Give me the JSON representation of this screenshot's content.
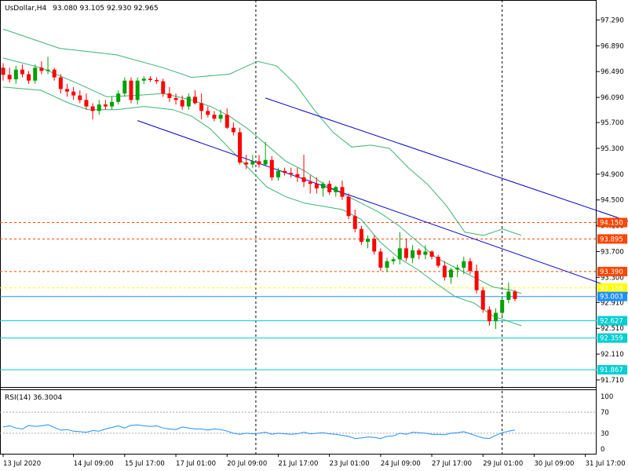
{
  "chart_data": {
    "type": "candlestick",
    "symbol_label": "UsDollar,H4",
    "ohlc_header": "93.080 93.105 92.930 92.965",
    "price_axis": {
      "ylim": [
        91.6,
        97.6
      ],
      "ticks": [
        "97.290",
        "96.890",
        "96.490",
        "96.090",
        "95.700",
        "95.300",
        "94.900",
        "94.500",
        "94.100",
        "93.700",
        "93.300",
        "92.910",
        "92.510",
        "92.110",
        "91.710"
      ]
    },
    "level_tags": [
      {
        "label": "94.150",
        "value": 94.15,
        "color": "#ff4500",
        "line": "dashed"
      },
      {
        "label": "93.895",
        "value": 93.895,
        "color": "#ff4500",
        "line": "dashed"
      },
      {
        "label": "93.390",
        "value": 93.39,
        "color": "#ff4500",
        "line": "dashed"
      },
      {
        "label": "93.136",
        "value": 93.136,
        "color": "#ffff00",
        "line": "dashed"
      },
      {
        "label": "93.003",
        "value": 93.003,
        "color": "#1e90ff",
        "line": "solid"
      },
      {
        "label": "92.627",
        "value": 92.627,
        "color": "#00ced1",
        "line": "solid"
      },
      {
        "label": "92.359",
        "value": 92.359,
        "color": "#00ced1",
        "line": "solid"
      },
      {
        "label": "91.867",
        "value": 91.867,
        "color": "#00ced1",
        "line": "solid"
      }
    ],
    "channel_lines": [
      {
        "from": [
          21,
          95.73
        ],
        "to": [
          128,
          92.0
        ]
      },
      {
        "from": [
          41,
          96.08
        ],
        "to": [
          128,
          93.15
        ]
      }
    ],
    "x_labels": [
      {
        "label": "13 Jul 2020",
        "bar": 0
      },
      {
        "label": "14 Jul 09:00",
        "bar": 11
      },
      {
        "label": "15 Jul 17:00",
        "bar": 19
      },
      {
        "label": "17 Jul 01:00",
        "bar": 27
      },
      {
        "label": "20 Jul 09:00",
        "bar": 35
      },
      {
        "label": "21 Jul 17:00",
        "bar": 43
      },
      {
        "label": "23 Jul 01:00",
        "bar": 51
      },
      {
        "label": "24 Jul 09:00",
        "bar": 59
      },
      {
        "label": "27 Jul 17:00",
        "bar": 67
      },
      {
        "label": "29 Jul 01:00",
        "bar": 75
      },
      {
        "label": "30 Jul 09:00",
        "bar": 83
      },
      {
        "label": "31 Jul 17:00",
        "bar": 91
      }
    ],
    "vlines_at_bars": [
      39.5,
      78
    ],
    "candles": [
      [
        96.55,
        96.62,
        96.35,
        96.44
      ],
      [
        96.44,
        96.55,
        96.32,
        96.37
      ],
      [
        96.37,
        96.58,
        96.3,
        96.52
      ],
      [
        96.52,
        96.6,
        96.4,
        96.45
      ],
      [
        96.45,
        96.5,
        96.3,
        96.35
      ],
      [
        96.35,
        96.6,
        96.3,
        96.55
      ],
      [
        96.55,
        96.65,
        96.45,
        96.5
      ],
      [
        96.5,
        96.72,
        96.45,
        96.52
      ],
      [
        96.52,
        96.55,
        96.35,
        96.4
      ],
      [
        96.4,
        96.45,
        96.15,
        96.22
      ],
      [
        96.22,
        96.3,
        96.1,
        96.18
      ],
      [
        96.18,
        96.25,
        96.05,
        96.12
      ],
      [
        96.12,
        96.2,
        96.0,
        96.05
      ],
      [
        96.05,
        96.15,
        95.9,
        95.95
      ],
      [
        95.95,
        96.0,
        95.75,
        95.88
      ],
      [
        95.88,
        96.05,
        95.82,
        95.98
      ],
      [
        95.98,
        96.05,
        95.9,
        95.95
      ],
      [
        95.95,
        96.1,
        95.9,
        96.02
      ],
      [
        96.02,
        96.2,
        95.98,
        96.15
      ],
      [
        96.15,
        96.4,
        96.1,
        96.35
      ],
      [
        96.35,
        96.4,
        96.0,
        96.05
      ],
      [
        96.05,
        96.4,
        95.98,
        96.35
      ],
      [
        96.35,
        96.42,
        96.3,
        96.38
      ],
      [
        96.38,
        96.42,
        96.33,
        96.36
      ],
      [
        96.36,
        96.4,
        96.3,
        96.34
      ],
      [
        96.34,
        96.38,
        96.1,
        96.15
      ],
      [
        96.15,
        96.25,
        96.02,
        96.08
      ],
      [
        96.08,
        96.15,
        95.98,
        96.05
      ],
      [
        96.05,
        96.12,
        95.9,
        95.95
      ],
      [
        95.95,
        96.15,
        95.9,
        96.1
      ],
      [
        96.1,
        96.2,
        95.98,
        96.0
      ],
      [
        96.0,
        96.15,
        95.75,
        95.88
      ],
      [
        95.88,
        95.95,
        95.78,
        95.82
      ],
      [
        95.82,
        95.88,
        95.72,
        95.76
      ],
      [
        95.76,
        95.9,
        95.7,
        95.82
      ],
      [
        95.82,
        95.92,
        95.6,
        95.62
      ],
      [
        95.62,
        95.7,
        95.5,
        95.55
      ],
      [
        95.55,
        95.62,
        95.05,
        95.08
      ],
      [
        95.08,
        95.2,
        94.98,
        95.05
      ],
      [
        95.05,
        95.2,
        95.0,
        95.1
      ],
      [
        95.1,
        95.2,
        95.0,
        95.05
      ],
      [
        95.05,
        95.4,
        95.02,
        95.12
      ],
      [
        95.12,
        95.18,
        94.8,
        94.85
      ],
      [
        94.85,
        95.0,
        94.8,
        94.95
      ],
      [
        94.95,
        95.0,
        94.88,
        94.92
      ],
      [
        94.92,
        95.0,
        94.85,
        94.9
      ],
      [
        94.9,
        95.0,
        94.78,
        94.85
      ],
      [
        94.85,
        95.2,
        94.7,
        94.78
      ],
      [
        94.78,
        94.88,
        94.6,
        94.75
      ],
      [
        94.75,
        94.85,
        94.6,
        94.68
      ],
      [
        94.68,
        94.78,
        94.55,
        94.75
      ],
      [
        94.75,
        94.8,
        94.58,
        94.62
      ],
      [
        94.62,
        94.72,
        94.55,
        94.7
      ],
      [
        94.7,
        94.8,
        94.5,
        94.55
      ],
      [
        94.55,
        94.6,
        94.2,
        94.25
      ],
      [
        94.25,
        94.35,
        94.0,
        94.05
      ],
      [
        94.05,
        94.1,
        93.8,
        93.85
      ],
      [
        93.85,
        93.95,
        93.75,
        93.9
      ],
      [
        93.9,
        93.95,
        93.65,
        93.7
      ],
      [
        93.7,
        93.75,
        93.4,
        93.45
      ],
      [
        93.45,
        93.6,
        93.38,
        93.55
      ],
      [
        93.55,
        93.62,
        93.5,
        93.58
      ],
      [
        93.58,
        94.0,
        93.5,
        93.75
      ],
      [
        93.75,
        93.9,
        93.55,
        93.6
      ],
      [
        93.6,
        93.8,
        93.52,
        93.72
      ],
      [
        93.72,
        93.75,
        93.58,
        93.65
      ],
      [
        93.65,
        93.8,
        93.58,
        93.7
      ],
      [
        93.7,
        93.72,
        93.58,
        93.62
      ],
      [
        93.62,
        93.65,
        93.45,
        93.48
      ],
      [
        93.48,
        93.55,
        93.25,
        93.3
      ],
      [
        93.3,
        93.45,
        93.2,
        93.42
      ],
      [
        93.42,
        93.5,
        93.3,
        93.45
      ],
      [
        93.45,
        93.62,
        93.35,
        93.55
      ],
      [
        93.55,
        93.6,
        93.35,
        93.4
      ],
      [
        93.4,
        93.5,
        93.05,
        93.1
      ],
      [
        93.1,
        93.15,
        92.75,
        92.8
      ],
      [
        92.8,
        92.85,
        92.55,
        92.62
      ],
      [
        92.62,
        92.82,
        92.5,
        92.75
      ],
      [
        92.75,
        93.0,
        92.7,
        92.95
      ],
      [
        92.95,
        93.22,
        92.9,
        93.08
      ],
      [
        93.08,
        93.105,
        92.93,
        92.965
      ]
    ],
    "bollinger": {
      "upper": [
        [
          0,
          97.15
        ],
        [
          12,
          96.85
        ],
        [
          24,
          96.75
        ],
        [
          34,
          96.55
        ],
        [
          40,
          96.4
        ],
        [
          48,
          96.45
        ],
        [
          54,
          96.65
        ],
        [
          58,
          96.58
        ],
        [
          62,
          96.3
        ],
        [
          66,
          95.9
        ],
        [
          70,
          95.55
        ],
        [
          74,
          95.32
        ],
        [
          78,
          95.35
        ],
        [
          82,
          95.3
        ],
        [
          86,
          95.0
        ],
        [
          90,
          94.75
        ],
        [
          94,
          94.42
        ],
        [
          98,
          94.0
        ],
        [
          102,
          93.95
        ],
        [
          106,
          94.05
        ],
        [
          110,
          93.95
        ]
      ],
      "middle": [
        [
          0,
          96.7
        ],
        [
          8,
          96.55
        ],
        [
          16,
          96.3
        ],
        [
          22,
          96.1
        ],
        [
          28,
          96.12
        ],
        [
          34,
          96.15
        ],
        [
          40,
          96.05
        ],
        [
          44,
          95.95
        ],
        [
          48,
          95.8
        ],
        [
          52,
          95.6
        ],
        [
          56,
          95.35
        ],
        [
          60,
          95.1
        ],
        [
          64,
          94.95
        ],
        [
          68,
          94.75
        ],
        [
          72,
          94.6
        ],
        [
          76,
          94.45
        ],
        [
          80,
          94.3
        ],
        [
          84,
          94.1
        ],
        [
          88,
          93.85
        ],
        [
          92,
          93.6
        ],
        [
          96,
          93.45
        ],
        [
          100,
          93.3
        ],
        [
          104,
          93.15
        ],
        [
          108,
          93.1
        ],
        [
          110,
          93.05
        ]
      ],
      "lower": [
        [
          0,
          96.25
        ],
        [
          8,
          96.2
        ],
        [
          14,
          96.0
        ],
        [
          18,
          95.9
        ],
        [
          24,
          95.9
        ],
        [
          30,
          95.95
        ],
        [
          36,
          95.9
        ],
        [
          40,
          95.8
        ],
        [
          44,
          95.6
        ],
        [
          48,
          95.3
        ],
        [
          52,
          95.0
        ],
        [
          56,
          94.7
        ],
        [
          60,
          94.55
        ],
        [
          64,
          94.45
        ],
        [
          68,
          94.4
        ],
        [
          72,
          94.35
        ],
        [
          76,
          94.2
        ],
        [
          80,
          93.85
        ],
        [
          84,
          93.6
        ],
        [
          88,
          93.42
        ],
        [
          92,
          93.2
        ],
        [
          96,
          93.0
        ],
        [
          100,
          92.9
        ],
        [
          104,
          92.7
        ],
        [
          108,
          92.6
        ],
        [
          110,
          92.55
        ]
      ]
    },
    "rsi": {
      "label": "RSI(14) 36.3004",
      "ylim": [
        0,
        100
      ],
      "ticks": [
        "100",
        "70",
        "30",
        "0"
      ],
      "levels": [
        70,
        30
      ],
      "values": [
        42,
        44,
        40,
        38,
        45,
        43,
        44,
        46,
        41,
        36,
        37,
        34,
        33,
        32,
        35,
        34,
        38,
        41,
        44,
        40,
        45,
        46,
        44,
        43,
        44,
        40,
        38,
        37,
        42,
        40,
        38,
        38,
        36,
        38,
        37,
        34,
        30,
        28,
        30,
        29,
        30,
        32,
        28,
        30,
        29,
        28,
        29,
        32,
        29,
        30,
        31,
        29,
        28,
        26,
        24,
        20,
        21,
        23,
        22,
        20,
        24,
        25,
        30,
        28,
        32,
        31,
        30,
        28,
        28,
        27,
        30,
        31,
        33,
        29,
        25,
        21,
        20,
        26,
        31,
        34,
        36
      ]
    },
    "colors": {
      "bull": "#00a000",
      "bear": "#ff0000",
      "bands": "#3cb371",
      "channel": "#0000cd",
      "rsi_line": "#1e90ff",
      "grid_dash": "#000000"
    }
  }
}
